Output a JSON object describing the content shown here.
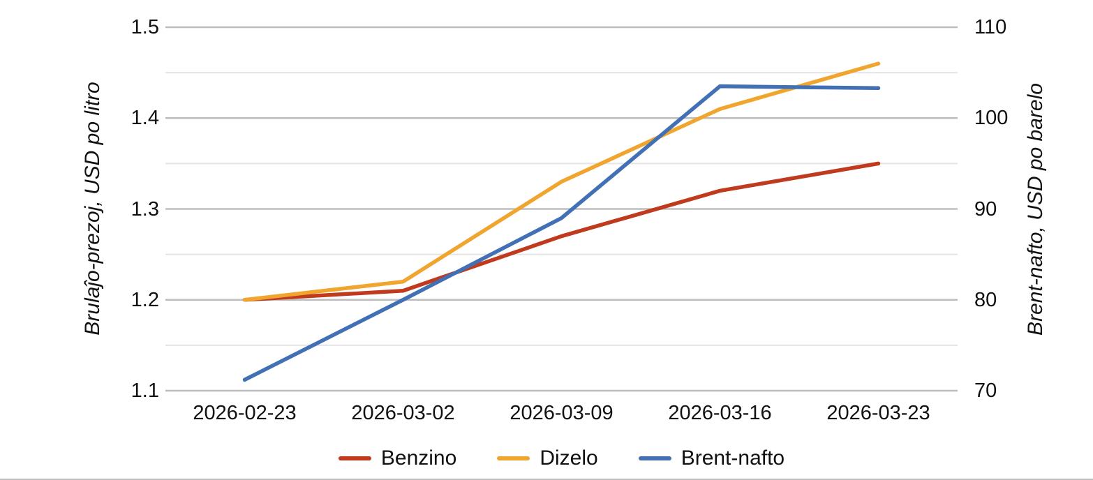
{
  "chart_data": {
    "type": "line",
    "title": "",
    "categories": [
      "2026-02-23",
      "2026-03-02",
      "2026-03-09",
      "2026-03-16",
      "2026-03-23"
    ],
    "series": [
      {
        "name": "Benzino",
        "axis": "left",
        "color": "#c03b1e",
        "values": [
          1.2,
          1.21,
          1.27,
          1.32,
          1.35
        ]
      },
      {
        "name": "Dizelo",
        "axis": "left",
        "color": "#f0a52f",
        "values": [
          1.2,
          1.22,
          1.33,
          1.41,
          1.46
        ]
      },
      {
        "name": "Brent-nafto",
        "axis": "right",
        "color": "#4170b4",
        "values": [
          71.2,
          80.0,
          89.0,
          103.5,
          103.3
        ]
      }
    ],
    "left_axis": {
      "label": "Brulaĵo-prezoj, USD po litro",
      "min": 1.1,
      "max": 1.5,
      "ticks": [
        1.1,
        1.2,
        1.3,
        1.4,
        1.5
      ],
      "tick_labels": [
        "1.1",
        "1.2",
        "1.3",
        "1.4",
        "1.5"
      ],
      "minor_gridlines": [
        1.15,
        1.25,
        1.35,
        1.45
      ]
    },
    "right_axis": {
      "label": "Brent-nafto, USD po barelo",
      "min": 70,
      "max": 110,
      "ticks": [
        70,
        80,
        90,
        100,
        110
      ],
      "tick_labels": [
        "70",
        "80",
        "90",
        "100",
        "110"
      ]
    },
    "legend_position": "bottom",
    "grid": "horizontal major+minor",
    "colors": {
      "major_grid": "#bdbdbd",
      "minor_grid": "#e4e4e4",
      "text": "#111111",
      "background": "#ffffff"
    }
  }
}
